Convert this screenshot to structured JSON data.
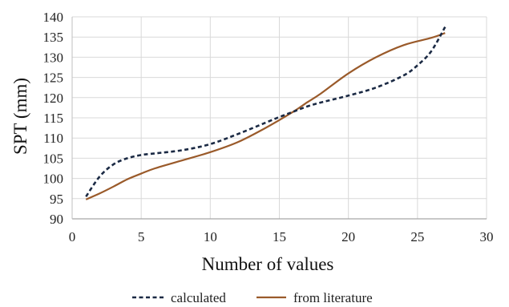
{
  "chart_data": {
    "type": "line",
    "xlabel": "Number of values",
    "ylabel": "SPT (mm)",
    "xlim": [
      0,
      30
    ],
    "ylim": [
      90,
      140
    ],
    "xticks": [
      "0",
      "5",
      "10",
      "15",
      "20",
      "25",
      "30"
    ],
    "yticks": [
      "90",
      "95",
      "100",
      "105",
      "110",
      "115",
      "120",
      "125",
      "130",
      "135",
      "140"
    ],
    "grid": true,
    "legend_position": "bottom",
    "series": [
      {
        "name": "calculated",
        "color": "#1b2a44",
        "dash": "dashed",
        "x": [
          1,
          2,
          3,
          4,
          5,
          6,
          8,
          10,
          12,
          14,
          15,
          16,
          17,
          18,
          20,
          22,
          24,
          25,
          26,
          27
        ],
        "y": [
          95.5,
          100.5,
          103.5,
          105,
          105.8,
          106.2,
          107,
          108.5,
          111,
          113.8,
          115.2,
          116.5,
          117.8,
          118.8,
          120.5,
          122.5,
          125.5,
          128,
          131.5,
          137.5
        ]
      },
      {
        "name": "from literature",
        "color": "#9a5a2a",
        "dash": "solid",
        "x": [
          1,
          2,
          3,
          4,
          5,
          6,
          8,
          10,
          12,
          14,
          16,
          17,
          18,
          20,
          22,
          24,
          26,
          27
        ],
        "y": [
          94.8,
          96.3,
          98,
          99.8,
          101.2,
          102.5,
          104.5,
          106.5,
          109,
          112.5,
          116.5,
          118.8,
          121,
          126,
          130,
          133,
          134.8,
          136
        ]
      }
    ]
  }
}
